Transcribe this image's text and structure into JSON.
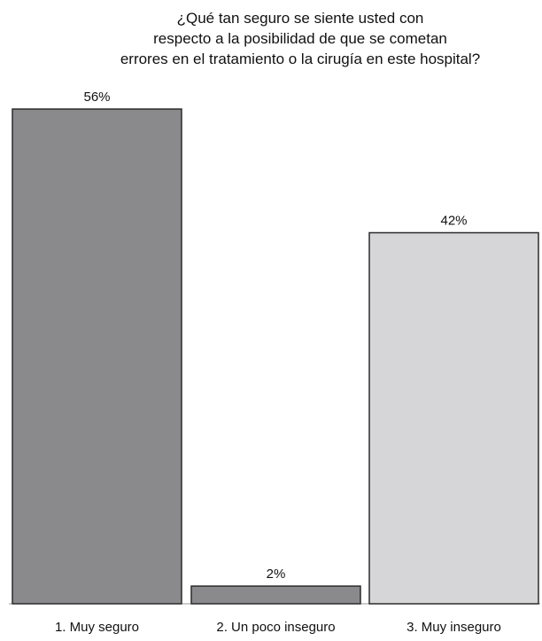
{
  "chart_data": {
    "type": "bar",
    "title_lines": [
      "¿Qué tan seguro se siente usted con",
      "respecto a la posibilidad de que se cometan",
      "errores en el tratamiento o la cirugía en este hospital?"
    ],
    "categories": [
      "1. Muy seguro",
      "2. Un poco inseguro",
      "3. Muy inseguro"
    ],
    "values": [
      56,
      2,
      42
    ],
    "value_labels": [
      "56%",
      "2%",
      "42%"
    ],
    "xlabel": "",
    "ylabel": "",
    "ylim": [
      0,
      56
    ],
    "grid": false,
    "legend": "none"
  },
  "colors": {
    "bars": [
      "#8a8a8c",
      "#8a8a8c",
      "#d6d6d8"
    ],
    "bar_stroke": "#2b2b2b",
    "baseline": "#9a9a9a"
  }
}
